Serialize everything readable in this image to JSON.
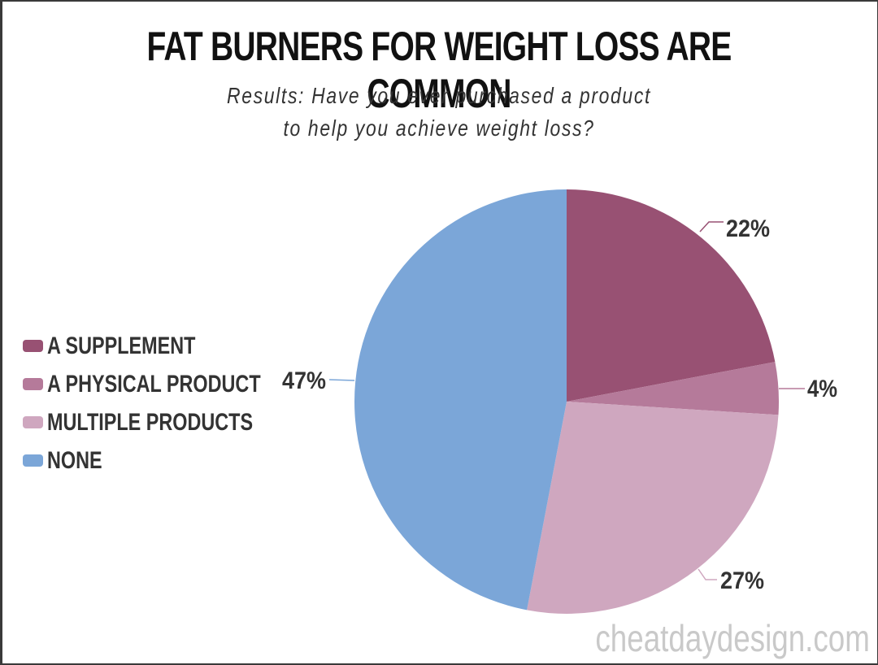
{
  "title": "FAT BURNERS FOR WEIGHT LOSS ARE COMMON",
  "subtitle_line1": "Results: Have you ever purchased a product",
  "subtitle_line2": "to help you achieve weight loss?",
  "legend": [
    {
      "label": "A SUPPLEMENT",
      "color": "#985173"
    },
    {
      "label": "A PHYSICAL PRODUCT",
      "color": "#b57a9a"
    },
    {
      "label": "MULTIPLE PRODUCTS",
      "color": "#cfa7bf"
    },
    {
      "label": "NONE",
      "color": "#7ba6d8"
    }
  ],
  "labels": {
    "supplement": "22%",
    "physical": "4%",
    "multiple": "27%",
    "none": "47%"
  },
  "watermark": "cheatdaydesign.com",
  "chart_data": {
    "type": "pie",
    "title": "FAT BURNERS FOR WEIGHT LOSS ARE COMMON",
    "subtitle": "Results: Have you ever purchased a product to help you achieve weight loss?",
    "categories": [
      "A SUPPLEMENT",
      "A PHYSICAL PRODUCT",
      "MULTIPLE PRODUCTS",
      "NONE"
    ],
    "values": [
      22,
      4,
      27,
      47
    ],
    "colors": [
      "#985173",
      "#b57a9a",
      "#cfa7bf",
      "#7ba6d8"
    ],
    "unit": "%",
    "legend_position": "left",
    "start_angle": "12 o'clock, clockwise"
  }
}
